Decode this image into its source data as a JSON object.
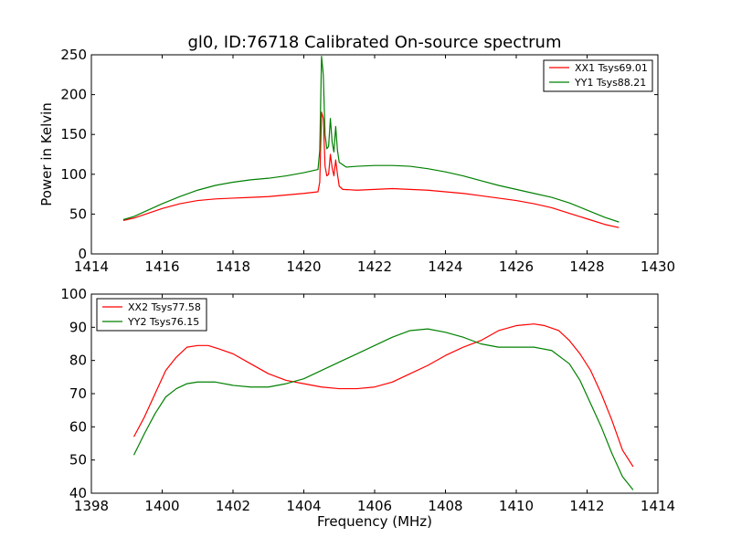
{
  "chart_data": [
    {
      "type": "line",
      "title": "gl0, ID:76718 Calibrated On-source spectrum",
      "xlabel": "",
      "ylabel": "Power in Kelvin",
      "xlim": [
        1414,
        1430
      ],
      "ylim": [
        0,
        250
      ],
      "xticks": [
        "1414",
        "1416",
        "1418",
        "1420",
        "1422",
        "1424",
        "1426",
        "1428",
        "1430"
      ],
      "yticks": [
        "0",
        "50",
        "100",
        "150",
        "200",
        "250"
      ],
      "grid": false,
      "legend": "top-right",
      "series": [
        {
          "name": "XX1 Tsys69.01",
          "color": "#ff0000",
          "points": [
            [
              1414.9,
              42
            ],
            [
              1415.2,
              45
            ],
            [
              1415.6,
              51
            ],
            [
              1416,
              57
            ],
            [
              1416.5,
              63
            ],
            [
              1417,
              67
            ],
            [
              1417.5,
              69
            ],
            [
              1418,
              70
            ],
            [
              1418.5,
              71
            ],
            [
              1419,
              72
            ],
            [
              1419.5,
              74
            ],
            [
              1420,
              76
            ],
            [
              1420.4,
              78
            ],
            [
              1420.45,
              90
            ],
            [
              1420.5,
              178
            ],
            [
              1420.55,
              170
            ],
            [
              1420.6,
              110
            ],
            [
              1420.65,
              98
            ],
            [
              1420.7,
              100
            ],
            [
              1420.75,
              125
            ],
            [
              1420.8,
              108
            ],
            [
              1420.85,
              98
            ],
            [
              1420.9,
              118
            ],
            [
              1420.95,
              100
            ],
            [
              1421,
              85
            ],
            [
              1421.1,
              81
            ],
            [
              1421.5,
              80
            ],
            [
              1422,
              81
            ],
            [
              1422.5,
              82
            ],
            [
              1423,
              81
            ],
            [
              1423.5,
              80
            ],
            [
              1424,
              78
            ],
            [
              1424.5,
              76
            ],
            [
              1425,
              73
            ],
            [
              1425.5,
              70
            ],
            [
              1426,
              67
            ],
            [
              1426.5,
              63
            ],
            [
              1427,
              58
            ],
            [
              1427.5,
              51
            ],
            [
              1428,
              44
            ],
            [
              1428.5,
              37
            ],
            [
              1428.9,
              33
            ]
          ]
        },
        {
          "name": "YY1 Tsys88.21",
          "color": "#008000",
          "points": [
            [
              1414.9,
              43
            ],
            [
              1415.2,
              47
            ],
            [
              1415.6,
              55
            ],
            [
              1416,
              63
            ],
            [
              1416.5,
              72
            ],
            [
              1417,
              80
            ],
            [
              1417.5,
              86
            ],
            [
              1418,
              90
            ],
            [
              1418.5,
              93
            ],
            [
              1419,
              95
            ],
            [
              1419.5,
              98
            ],
            [
              1420,
              102
            ],
            [
              1420.4,
              106
            ],
            [
              1420.45,
              130
            ],
            [
              1420.5,
              248
            ],
            [
              1420.55,
              225
            ],
            [
              1420.6,
              150
            ],
            [
              1420.65,
              132
            ],
            [
              1420.7,
              135
            ],
            [
              1420.75,
              170
            ],
            [
              1420.8,
              140
            ],
            [
              1420.85,
              128
            ],
            [
              1420.9,
              160
            ],
            [
              1420.95,
              130
            ],
            [
              1421,
              115
            ],
            [
              1421.2,
              109
            ],
            [
              1421.5,
              110
            ],
            [
              1422,
              111
            ],
            [
              1422.5,
              111
            ],
            [
              1423,
              110
            ],
            [
              1423.5,
              107
            ],
            [
              1424,
              103
            ],
            [
              1424.5,
              98
            ],
            [
              1425,
              92
            ],
            [
              1425.5,
              86
            ],
            [
              1426,
              81
            ],
            [
              1426.5,
              76
            ],
            [
              1427,
              71
            ],
            [
              1427.5,
              64
            ],
            [
              1428,
              55
            ],
            [
              1428.5,
              46
            ],
            [
              1428.9,
              40
            ]
          ]
        }
      ]
    },
    {
      "type": "line",
      "title": "",
      "xlabel": "Frequency (MHz)",
      "ylabel": "",
      "xlim": [
        1398,
        1414
      ],
      "ylim": [
        40,
        100
      ],
      "xticks": [
        "1398",
        "1400",
        "1402",
        "1404",
        "1406",
        "1408",
        "1410",
        "1412",
        "1414"
      ],
      "yticks": [
        "40",
        "50",
        "60",
        "70",
        "80",
        "90",
        "100"
      ],
      "grid": false,
      "legend": "top-left",
      "series": [
        {
          "name": "XX2 Tsys77.58",
          "color": "#ff0000",
          "points": [
            [
              1399.2,
              57
            ],
            [
              1399.5,
              63
            ],
            [
              1399.8,
              70
            ],
            [
              1400.1,
              77
            ],
            [
              1400.4,
              81
            ],
            [
              1400.7,
              84
            ],
            [
              1401,
              84.5
            ],
            [
              1401.3,
              84.5
            ],
            [
              1401.6,
              83.5
            ],
            [
              1402,
              82
            ],
            [
              1402.5,
              79
            ],
            [
              1403,
              76
            ],
            [
              1403.5,
              74
            ],
            [
              1404,
              73
            ],
            [
              1404.5,
              72
            ],
            [
              1405,
              71.5
            ],
            [
              1405.5,
              71.5
            ],
            [
              1406,
              72
            ],
            [
              1406.5,
              73.5
            ],
            [
              1407,
              76
            ],
            [
              1407.5,
              78.5
            ],
            [
              1408,
              81.5
            ],
            [
              1408.5,
              84
            ],
            [
              1409,
              86
            ],
            [
              1409.5,
              89
            ],
            [
              1410,
              90.5
            ],
            [
              1410.5,
              91
            ],
            [
              1410.8,
              90.5
            ],
            [
              1411.2,
              89
            ],
            [
              1411.5,
              86
            ],
            [
              1411.8,
              82
            ],
            [
              1412.1,
              77
            ],
            [
              1412.4,
              70
            ],
            [
              1412.7,
              62
            ],
            [
              1413,
              53
            ],
            [
              1413.3,
              48
            ]
          ]
        },
        {
          "name": "YY2 Tsys76.15",
          "color": "#008000",
          "points": [
            [
              1399.2,
              51.5
            ],
            [
              1399.5,
              58
            ],
            [
              1399.8,
              64
            ],
            [
              1400.1,
              69
            ],
            [
              1400.4,
              71.5
            ],
            [
              1400.7,
              73
            ],
            [
              1401,
              73.5
            ],
            [
              1401.5,
              73.5
            ],
            [
              1402,
              72.5
            ],
            [
              1402.5,
              72
            ],
            [
              1403,
              72
            ],
            [
              1403.5,
              73
            ],
            [
              1404,
              74.5
            ],
            [
              1404.5,
              77
            ],
            [
              1405,
              79.5
            ],
            [
              1405.5,
              82
            ],
            [
              1406,
              84.5
            ],
            [
              1406.5,
              87
            ],
            [
              1407,
              89
            ],
            [
              1407.5,
              89.5
            ],
            [
              1408,
              88.5
            ],
            [
              1408.5,
              87
            ],
            [
              1409,
              85
            ],
            [
              1409.5,
              84
            ],
            [
              1410,
              84
            ],
            [
              1410.5,
              84
            ],
            [
              1411,
              83
            ],
            [
              1411.5,
              79
            ],
            [
              1411.8,
              74
            ],
            [
              1412.1,
              67
            ],
            [
              1412.4,
              60
            ],
            [
              1412.7,
              52
            ],
            [
              1413,
              45
            ],
            [
              1413.3,
              41
            ]
          ]
        }
      ]
    }
  ]
}
